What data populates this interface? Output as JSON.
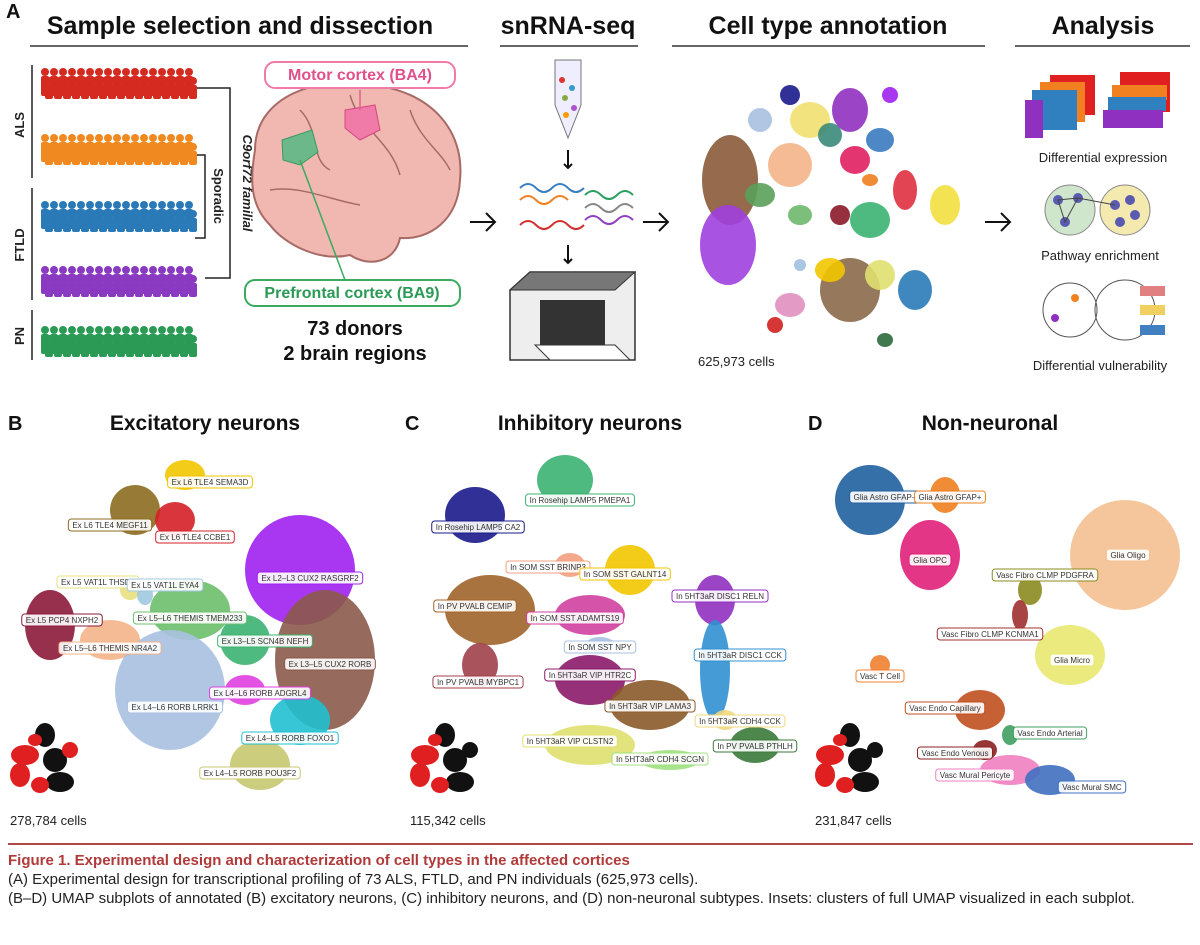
{
  "panel_a": {
    "letter": "A",
    "headers": [
      "Sample selection and dissection",
      "snRNA-seq",
      "Cell type annotation",
      "Analysis"
    ],
    "groups": [
      "ALS",
      "FTLD",
      "PN"
    ],
    "brackets": [
      "C9orf72 familial",
      "Sporadic"
    ],
    "regions": [
      "Motor cortex (BA4)",
      "Prefrontal cortex (BA9)"
    ],
    "donors": "73 donors",
    "brain_regions": "2 brain regions",
    "cells": "625,973 cells",
    "analysis": [
      "Differential expression",
      "Pathway enrichment",
      "Differential vulnerability"
    ]
  },
  "panels": [
    {
      "letter": "B",
      "title": "Excitatory neurons",
      "cells": "278,784 cells",
      "clusters": [
        "Ex L6 TLE4 SEMA3D",
        "Ex L6 TLE4 MEGF11",
        "Ex L6 TLE4 CCBE1",
        "Ex L2–L3 CUX2 RASGRF2",
        "Ex L5 VAT1L THSD4",
        "Ex L5 VAT1L EYA4",
        "Ex L5 PCP4 NXPH2",
        "Ex L5–L6 THEMIS TMEM233",
        "Ex L5–L6 THEMIS NR4A2",
        "Ex L3–L5 SCN4B NEFH",
        "Ex L3–L5 CUX2 RORB",
        "Ex L4–L6 RORB ADGRL4",
        "Ex L4–L6 RORB LRRK1",
        "Ex L4–L5 RORB FOXO1",
        "Ex L4–L5 RORB POU3F2"
      ]
    },
    {
      "letter": "C",
      "title": "Inhibitory neurons",
      "cells": "115,342 cells",
      "clusters": [
        "In Rosehip LAMP5 PMEPA1",
        "In Rosehip LAMP5 CA2",
        "In SOM SST BRINP3",
        "In SOM SST GALNT14",
        "In PV PVALB CEMIP",
        "In SOM SST ADAMTS19",
        "In 5HT3aR DISC1 RELN",
        "In SOM SST NPY",
        "In 5HT3aR DISC1 CCK",
        "In 5HT3aR VIP HTR2C",
        "In PV PVALB MYBPC1",
        "In 5HT3aR VIP LAMA3",
        "In 5HT3aR CDH4 CCK",
        "In 5HT3aR VIP CLSTN2",
        "In 5HT3aR CDH4 SCGN",
        "In PV PVALB PTHLH"
      ]
    },
    {
      "letter": "D",
      "title": "Non-neuronal",
      "cells": "231,847 cells",
      "clusters": [
        "Glia Astro GFAP–",
        "Glia Astro GFAP+",
        "Glia OPC",
        "Glia Oligo",
        "Vasc Fibro CLMP PDGFRA",
        "Vasc Fibro CLMP KCNMA1",
        "Glia Micro",
        "Vasc T Cell",
        "Vasc Endo Capillary",
        "Vasc Endo Arterial",
        "Vasc Endo Venous",
        "Vasc Mural Pericyte",
        "Vasc Mural SMC"
      ]
    }
  ],
  "caption": {
    "title": "Figure 1. Experimental design and characterization of cell types in the affected cortices",
    "lines": [
      "(A) Experimental design for transcriptional profiling of 73 ALS, FTLD, and PN individuals (625,973 cells).",
      "(B–D) UMAP subplots of annotated (B) excitatory neurons, (C) inhibitory neurons, and (D) non-neuronal subtypes. Insets: clusters of full UMAP visualized in each subplot."
    ]
  }
}
